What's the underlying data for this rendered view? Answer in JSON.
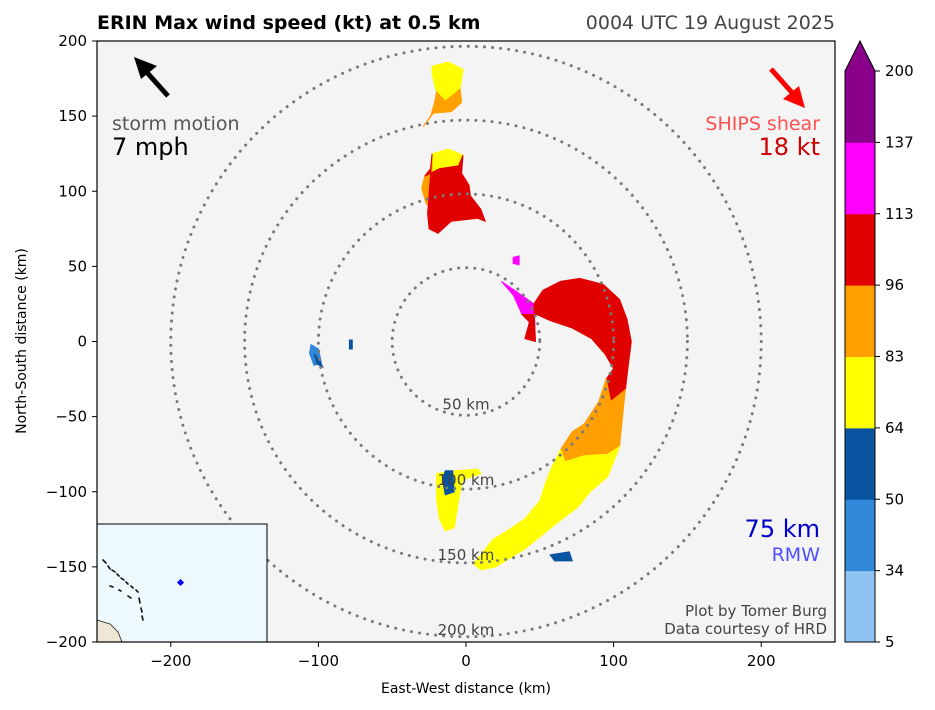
{
  "title": "ERIN Max wind speed (kt) at 0.5 km",
  "valid_time": "0004 UTC 19 August 2025",
  "storm_motion": {
    "label": "storm motion",
    "value": "7 mph"
  },
  "ships_shear": {
    "label": "SHIPS shear",
    "value": "18 kt"
  },
  "rmw": {
    "value": "75 km",
    "label": "RMW"
  },
  "credits": {
    "line1": "Plot by Tomer Burg",
    "line2": "Data courtesy of HRD"
  },
  "colors": {
    "plot_bg": "#f4f4f4",
    "inset_bg": "#eef9fd",
    "ring": "#7a7a7a",
    "motion_arrow": "#000000",
    "shear_arrow": "#ff0000",
    "rmw_text": "#0000c8"
  },
  "chart_data": {
    "type": "heatmap",
    "xlabel": "East-West distance (km)",
    "ylabel": "North-South distance (km)",
    "xlim": [
      -250,
      250
    ],
    "ylim": [
      -200,
      200
    ],
    "xticks": [
      -200,
      -100,
      0,
      100,
      200
    ],
    "yticks": [
      -200,
      -150,
      -100,
      -50,
      0,
      50,
      100,
      150,
      200
    ],
    "grid": false,
    "range_rings_km": [
      {
        "radius": 50,
        "label": "50 km"
      },
      {
        "radius": 100,
        "label": "100 km"
      },
      {
        "radius": 150,
        "label": "150 km"
      },
      {
        "radius": 200,
        "label": "200 km"
      }
    ],
    "colorbar": {
      "boundaries": [
        5,
        34,
        50,
        64,
        83,
        96,
        113,
        137,
        200
      ],
      "tick_labels": [
        "5",
        "34",
        "50",
        "64",
        "83",
        "96",
        "113",
        "137",
        "200"
      ],
      "colors": [
        "#8ec3f2",
        "#3288d8",
        "#0a53a0",
        "#ffff00",
        "#ff9f00",
        "#e00000",
        "#ff00ff",
        "#8b008b"
      ],
      "extend": "max"
    },
    "storm_motion_dir_deg": 315,
    "shear_dir_deg": 135,
    "wind_regions": [
      {
        "cat": 3,
        "points": [
          [
            -23,
            183
          ],
          [
            -12,
            186
          ],
          [
            -2,
            181
          ],
          [
            -4,
            168
          ],
          [
            -14,
            160
          ],
          [
            -20,
            166
          ],
          [
            -23,
            178
          ]
        ]
      },
      {
        "cat": 4,
        "points": [
          [
            -20,
            166
          ],
          [
            -14,
            160
          ],
          [
            -4,
            168
          ],
          [
            -3,
            159
          ],
          [
            -10,
            153
          ],
          [
            -22,
            152
          ],
          [
            -29,
            143
          ],
          [
            -24,
            150
          ],
          [
            -21,
            160
          ]
        ]
      },
      {
        "cat": 3,
        "points": [
          [
            -23,
            125
          ],
          [
            -12,
            128
          ],
          [
            -2,
            124
          ],
          [
            -5,
            117
          ],
          [
            -18,
            115
          ],
          [
            -28,
            110
          ],
          [
            -30,
            102
          ],
          [
            -27,
            92
          ],
          [
            -23,
            88
          ]
        ]
      },
      {
        "cat": 4,
        "points": [
          [
            -23,
            88
          ],
          [
            -27,
            92
          ],
          [
            -30,
            102
          ],
          [
            -28,
            110
          ],
          [
            -24,
            115
          ],
          [
            -23,
            125
          ]
        ]
      },
      {
        "cat": 5,
        "points": [
          [
            -23,
            125
          ],
          [
            -24,
            115
          ],
          [
            -28,
            110
          ],
          [
            -18,
            115
          ],
          [
            -5,
            117
          ],
          [
            -2,
            124
          ],
          [
            -3,
            112
          ],
          [
            2,
            104
          ],
          [
            3,
            97
          ],
          [
            10,
            88
          ],
          [
            13,
            80
          ],
          [
            8,
            82
          ],
          [
            -10,
            80
          ],
          [
            -19,
            72
          ],
          [
            -25,
            75
          ],
          [
            -26,
            85
          ]
        ]
      },
      {
        "cat": 6,
        "points": [
          [
            32,
            56
          ],
          [
            36,
            57
          ],
          [
            36,
            51
          ],
          [
            32,
            52
          ]
        ]
      },
      {
        "cat": 6,
        "points": [
          [
            24,
            40
          ],
          [
            36,
            32
          ],
          [
            46,
            25
          ],
          [
            47,
            0
          ],
          [
            40,
            2
          ],
          [
            43,
            13
          ],
          [
            38,
            18
          ],
          [
            32,
            31
          ],
          [
            24,
            40
          ]
        ]
      },
      {
        "cat": 5,
        "points": [
          [
            38,
            18
          ],
          [
            43,
            13
          ],
          [
            40,
            2
          ],
          [
            47,
            0
          ],
          [
            46,
            25
          ],
          [
            52,
            34
          ],
          [
            64,
            40
          ],
          [
            77,
            42
          ],
          [
            93,
            38
          ],
          [
            104,
            28
          ],
          [
            109,
            15
          ],
          [
            112,
            0
          ],
          [
            110,
            -15
          ],
          [
            108,
            -32
          ],
          [
            98,
            -40
          ],
          [
            95,
            -25
          ],
          [
            100,
            -18
          ],
          [
            94,
            -8
          ],
          [
            85,
            2
          ],
          [
            72,
            9
          ],
          [
            57,
            14
          ],
          [
            48,
            18
          ]
        ]
      },
      {
        "cat": 4,
        "points": [
          [
            95,
            -25
          ],
          [
            98,
            -40
          ],
          [
            108,
            -32
          ],
          [
            106,
            -50
          ],
          [
            104,
            -70
          ],
          [
            96,
            -75
          ],
          [
            80,
            -76
          ],
          [
            67,
            -80
          ],
          [
            64,
            -72
          ],
          [
            72,
            -60
          ],
          [
            80,
            -55
          ],
          [
            90,
            -40
          ]
        ]
      },
      {
        "cat": 3,
        "points": [
          [
            64,
            -72
          ],
          [
            67,
            -80
          ],
          [
            80,
            -76
          ],
          [
            96,
            -75
          ],
          [
            104,
            -70
          ],
          [
            96,
            -90
          ],
          [
            84,
            -100
          ],
          [
            76,
            -110
          ],
          [
            60,
            -122
          ],
          [
            50,
            -130
          ],
          [
            40,
            -138
          ],
          [
            30,
            -144
          ],
          [
            20,
            -150
          ],
          [
            10,
            -152
          ],
          [
            5,
            -148
          ],
          [
            10,
            -142
          ],
          [
            18,
            -132
          ],
          [
            28,
            -126
          ],
          [
            40,
            -118
          ],
          [
            50,
            -106
          ],
          [
            54,
            -94
          ],
          [
            58,
            -84
          ]
        ]
      },
      {
        "cat": 3,
        "points": [
          [
            -8,
            -86
          ],
          [
            8,
            -85
          ],
          [
            10,
            -88
          ],
          [
            -2,
            -92
          ],
          [
            -4,
            -100
          ],
          [
            -6,
            -112
          ],
          [
            -8,
            -124
          ],
          [
            -14,
            -126
          ],
          [
            -18,
            -118
          ],
          [
            -20,
            -104
          ],
          [
            -20,
            -88
          ]
        ]
      },
      {
        "cat": 2,
        "points": [
          [
            -14,
            -86
          ],
          [
            -9,
            -86
          ],
          [
            -8,
            -100
          ],
          [
            -14,
            -102
          ],
          [
            -16,
            -92
          ]
        ]
      },
      {
        "cat": 1,
        "points": [
          [
            -105,
            -2
          ],
          [
            -100,
            -5
          ],
          [
            -98,
            -14
          ],
          [
            -103,
            -16
          ],
          [
            -106,
            -8
          ]
        ]
      },
      {
        "cat": 2,
        "points": [
          [
            -103,
            -8
          ],
          [
            -99,
            -13
          ],
          [
            -97,
            -17
          ],
          [
            -101,
            -15
          ]
        ]
      },
      {
        "cat": 2,
        "points": [
          [
            -79,
            1
          ],
          [
            -77,
            1
          ],
          [
            -77,
            -5
          ],
          [
            -79,
            -5
          ]
        ]
      },
      {
        "cat": 2,
        "points": [
          [
            57,
            -142
          ],
          [
            70,
            -140
          ],
          [
            72,
            -146
          ],
          [
            60,
            -146
          ]
        ]
      }
    ]
  }
}
